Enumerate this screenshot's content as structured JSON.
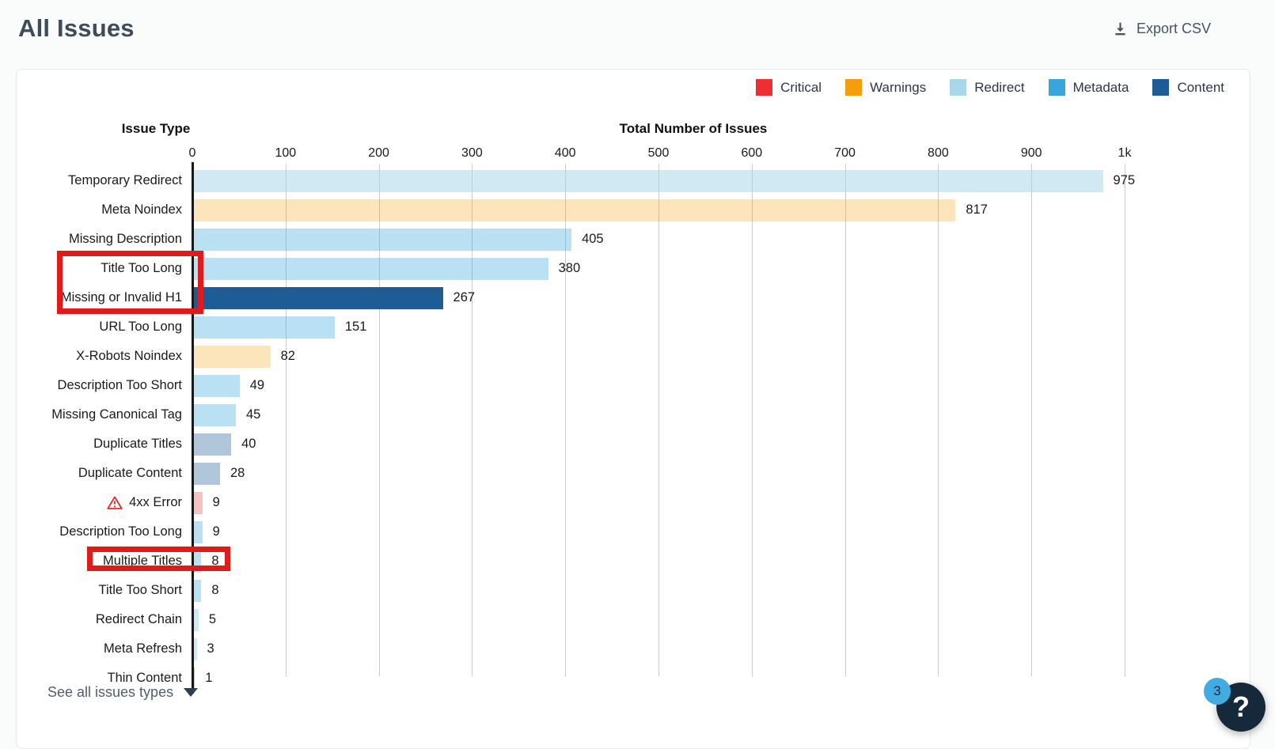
{
  "page": {
    "title": "All Issues"
  },
  "toolbar": {
    "export_label": "Export CSV"
  },
  "legend": {
    "items": [
      {
        "label": "Critical",
        "color": "#ee2e31"
      },
      {
        "label": "Warnings",
        "color": "#f59e0b"
      },
      {
        "label": "Redirect",
        "color": "#a9d7ea"
      },
      {
        "label": "Metadata",
        "color": "#38a6dd"
      },
      {
        "label": "Content",
        "color": "#1d5c94"
      }
    ]
  },
  "chart_data": {
    "type": "bar",
    "orientation": "horizontal",
    "title": "",
    "ylabel": "Issue Type",
    "xlabel": "Total Number of Issues",
    "xlim": [
      0,
      1000
    ],
    "x_ticks": [
      {
        "value": 0,
        "label": "0"
      },
      {
        "value": 100,
        "label": "100"
      },
      {
        "value": 200,
        "label": "200"
      },
      {
        "value": 300,
        "label": "300"
      },
      {
        "value": 400,
        "label": "400"
      },
      {
        "value": 500,
        "label": "500"
      },
      {
        "value": 600,
        "label": "600"
      },
      {
        "value": 700,
        "label": "700"
      },
      {
        "value": 800,
        "label": "800"
      },
      {
        "value": 900,
        "label": "900"
      },
      {
        "value": 1000,
        "label": "1k"
      }
    ],
    "grid": true,
    "legend_position": "top-right",
    "bars": [
      {
        "label": "Temporary Redirect",
        "value": 975,
        "category": "Redirect"
      },
      {
        "label": "Meta Noindex",
        "value": 817,
        "category": "Warnings"
      },
      {
        "label": "Missing Description",
        "value": 405,
        "category": "Metadata"
      },
      {
        "label": "Title Too Long",
        "value": 380,
        "category": "Metadata"
      },
      {
        "label": "Missing or Invalid H1",
        "value": 267,
        "category": "Content",
        "solid": true
      },
      {
        "label": "URL Too Long",
        "value": 151,
        "category": "Metadata"
      },
      {
        "label": "X-Robots Noindex",
        "value": 82,
        "category": "Warnings"
      },
      {
        "label": "Description Too Short",
        "value": 49,
        "category": "Metadata"
      },
      {
        "label": "Missing Canonical Tag",
        "value": 45,
        "category": "Metadata"
      },
      {
        "label": "Duplicate Titles",
        "value": 40,
        "category": "Content"
      },
      {
        "label": "Duplicate Content",
        "value": 28,
        "category": "Content"
      },
      {
        "label": "4xx Error",
        "value": 9,
        "category": "Critical",
        "icon": "warning-triangle"
      },
      {
        "label": "Description Too Long",
        "value": 9,
        "category": "Metadata"
      },
      {
        "label": "Multiple Titles",
        "value": 8,
        "category": "Metadata"
      },
      {
        "label": "Title Too Short",
        "value": 8,
        "category": "Metadata"
      },
      {
        "label": "Redirect Chain",
        "value": 5,
        "category": "Redirect"
      },
      {
        "label": "Meta Refresh",
        "value": 3,
        "category": "Redirect"
      },
      {
        "label": "Thin Content",
        "value": 1,
        "category": "Content"
      }
    ],
    "bar_fill_colors": {
      "Critical": "rgba(238,46,49,0.30)",
      "Warnings": "rgba(245,158,11,0.28)",
      "Redirect": "rgba(169,215,234,0.55)",
      "Metadata": "rgba(56,166,221,0.35)",
      "Content": "rgba(29,92,148,0.35)"
    },
    "bar_solid_colors": {
      "Content": "#1d5c94"
    }
  },
  "annotations": {
    "color": "#e01b1c",
    "highlight_boxes": [
      {
        "rows": [
          "Title Too Long",
          "Missing or Invalid H1"
        ],
        "includes_value": false
      },
      {
        "rows": [
          "Multiple Titles"
        ],
        "includes_value": true
      }
    ]
  },
  "footer": {
    "see_all_label": "See all issues types"
  },
  "help": {
    "glyph": "?",
    "badge_count": "3"
  }
}
